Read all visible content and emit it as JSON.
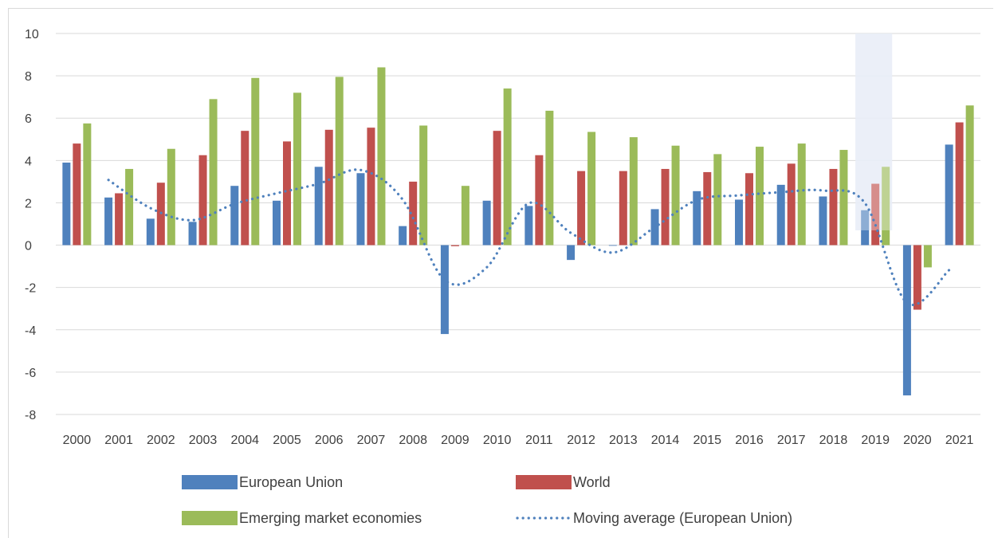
{
  "chart_data": {
    "type": "bar",
    "title": "",
    "xlabel": "",
    "ylabel": "",
    "ylim": [
      -8,
      10
    ],
    "y_ticks": [
      10,
      8,
      6,
      4,
      2,
      0,
      -2,
      -4,
      -6,
      -8
    ],
    "categories": [
      "2000",
      "2001",
      "2002",
      "2003",
      "2004",
      "2005",
      "2006",
      "2007",
      "2008",
      "2009",
      "2010",
      "2011",
      "2012",
      "2013",
      "2014",
      "2015",
      "2016",
      "2017",
      "2018",
      "2019",
      "2020",
      "2021"
    ],
    "series": [
      {
        "name": "European Union",
        "color": "#4f81bd",
        "values": [
          3.9,
          2.25,
          1.25,
          1.1,
          2.8,
          2.1,
          3.7,
          3.4,
          0.9,
          -4.2,
          2.1,
          1.85,
          -0.7,
          0.0,
          1.7,
          2.55,
          2.15,
          2.85,
          2.3,
          1.65,
          -7.1,
          4.75
        ]
      },
      {
        "name": "World",
        "color": "#c0504d",
        "values": [
          4.8,
          2.45,
          2.95,
          4.25,
          5.4,
          4.9,
          5.45,
          5.55,
          3.0,
          -0.05,
          5.4,
          4.25,
          3.5,
          3.5,
          3.6,
          3.45,
          3.4,
          3.85,
          3.6,
          2.9,
          -3.05,
          5.8
        ]
      },
      {
        "name": "Emerging market economies",
        "color": "#9bbb59",
        "values": [
          5.75,
          3.6,
          4.55,
          6.9,
          7.9,
          7.2,
          7.95,
          8.4,
          5.65,
          2.8,
          7.4,
          6.35,
          5.35,
          5.1,
          4.7,
          4.3,
          4.65,
          4.8,
          4.5,
          3.7,
          -1.05,
          6.6
        ]
      }
    ],
    "line_series": {
      "name": "Moving average (European Union)",
      "color": "#4f81bd",
      "style": "dotted",
      "x_start_index": 1,
      "values": [
        3.08,
        1.75,
        1.18,
        1.95,
        2.45,
        2.9,
        3.55,
        2.15,
        -1.65,
        -1.05,
        1.98,
        0.58,
        -0.35,
        0.85,
        2.13,
        2.35,
        2.5,
        2.58,
        1.98,
        -2.73,
        -1.18
      ]
    },
    "highlight": {
      "category": "2019",
      "y_range": [
        0.7,
        10
      ],
      "color": "#dae3f3"
    },
    "grid": "horizontal",
    "legend_placement": "bottom",
    "legend": [
      {
        "label": "European Union",
        "kind": "bar",
        "color": "#4f81bd"
      },
      {
        "label": "World",
        "kind": "bar",
        "color": "#c0504d"
      },
      {
        "label": "Emerging market economies",
        "kind": "bar",
        "color": "#9bbb59"
      },
      {
        "label": "Moving average (European Union)",
        "kind": "dotted-line",
        "color": "#4f81bd"
      }
    ]
  }
}
